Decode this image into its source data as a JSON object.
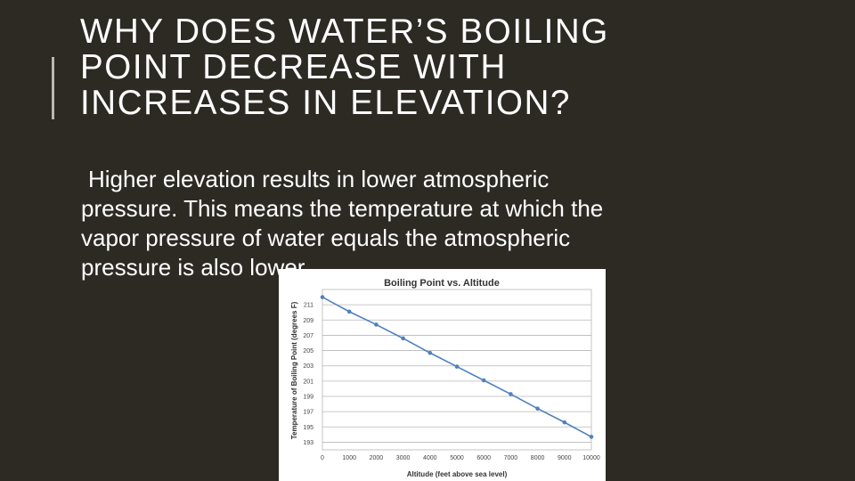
{
  "slide": {
    "title_lines": [
      "WHY DOES WATER’S BOILING",
      "POINT DECREASE WITH",
      "INCREASES IN ELEVATION?"
    ],
    "body_lines": [
      "Higher elevation results in lower atmospheric",
      "pressure. This means the temperature at which the",
      "vapor pressure of water equals the atmospheric",
      "pressure is also lower."
    ]
  },
  "colors": {
    "background": "#2d2a24",
    "text": "#ffffff",
    "accent_bar": "#bdb8ad",
    "series": "#4f81bd",
    "grid": "#b8b8b8"
  },
  "chart_data": {
    "type": "line",
    "title": "Boiling Point vs. Altitude",
    "xlabel": "Altitude (feet above sea level)",
    "ylabel": "Temperature of Boiling Point (degrees F)",
    "x": [
      0,
      1000,
      2000,
      3000,
      4000,
      5000,
      6000,
      7000,
      8000,
      9000,
      10000
    ],
    "x_ticks": [
      0,
      1000,
      2000,
      3000,
      4000,
      5000,
      6000,
      7000,
      8000,
      9000,
      10000
    ],
    "y_ticks": [
      193,
      195,
      197,
      199,
      201,
      203,
      205,
      207,
      209,
      211
    ],
    "series": [
      {
        "values": [
          212.0,
          210.1,
          208.4,
          206.6,
          204.7,
          202.9,
          201.1,
          199.3,
          197.4,
          195.6,
          193.7
        ]
      }
    ],
    "xlim": [
      0,
      10000
    ],
    "ylim": [
      192,
      213
    ],
    "grid": true,
    "legend": "none"
  }
}
